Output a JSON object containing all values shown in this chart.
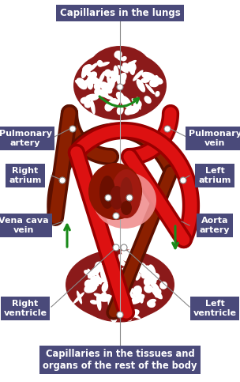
{
  "bg_color": "#ffffff",
  "label_bg": "#4a4a7a",
  "label_text_color": "#ffffff",
  "label_font_size": 8.0,
  "dark_red": "#8B1A1A",
  "vessel_dark": "#7B1500",
  "vessel_bright": "#CC1111",
  "pink": "#E87070",
  "green_arrow": "#1A8A1A",
  "line_color": "#888888",
  "labels": {
    "top": "Capillaries in the lungs",
    "bottom": "Capillaries in the tissues and\norgans of the rest of the body",
    "pulm_artery": "Pulmonary\nartery",
    "pulm_vein": "Pulmonary\nvein",
    "right_atrium": "Right\natrium",
    "left_atrium": "Left\natrium",
    "vena_cava": "Vena cava\nvein",
    "aorta": "Aorta\nartery",
    "right_ventricle": "Right\nventricle",
    "left_ventricle": "Left\nventricle"
  },
  "figsize": [
    3.04,
    4.83
  ],
  "dpi": 100
}
